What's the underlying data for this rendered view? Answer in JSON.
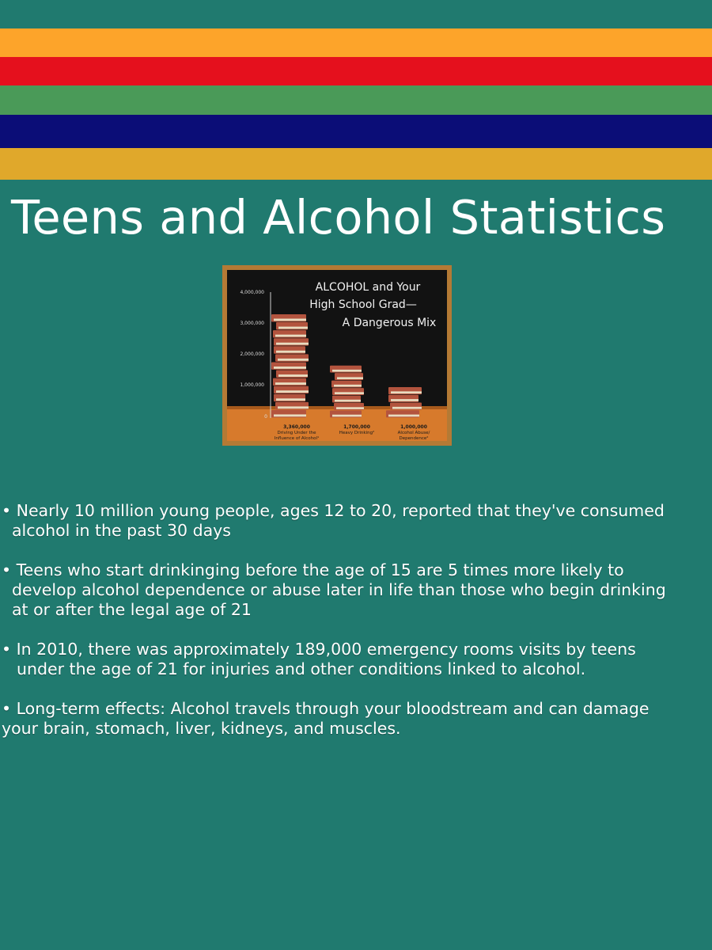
{
  "header": {
    "stripe_colors": [
      "#fda42a",
      "#e5101d",
      "#4a9a58",
      "#0b0d77",
      "#e0a82b"
    ],
    "title": "Teens and Alcohol Statistics"
  },
  "poster": {
    "heading": [
      "ALCOHOL and Your",
      "High School Grad—",
      "A Dangerous Mix"
    ],
    "y_ticks": [
      "4,000,000",
      "3,000,000",
      "2,000,000",
      "1,000,000",
      "0"
    ],
    "bars": [
      {
        "value": "3,360,000",
        "label_lines": [
          "Driving Under the",
          "Influence of Alcohol¹"
        ]
      },
      {
        "value": "1,700,000",
        "label_lines": [
          "Heavy Drinking²"
        ]
      },
      {
        "value": "1,000,000",
        "label_lines": [
          "Alcohol Abuse/",
          "Dependence²"
        ]
      }
    ],
    "colors": {
      "board": "#121212",
      "frame": "#b47a35",
      "table": "#d77a2c",
      "book": "#b3543e",
      "pages": "#e8dcc0"
    }
  },
  "facts": [
    {
      "lines": [
        "• Nearly 10 million young people, ages 12 to 20, reported that they've consumed",
        "alcohol in the past 30 days"
      ]
    },
    {
      "lines": [
        "• Teens who start drinkinging before the age of 15 are 5 times more likely to",
        "develop alcohol dependence or abuse later in life than those who begin drinking",
        "at or after the legal age of 21"
      ]
    },
    {
      "lines": [
        "• In 2010, there was approximately 189,000 emergency rooms visits by teens",
        "under the age of 21 for injuries and other conditions linked to alcohol."
      ]
    },
    {
      "lines": [
        "• Long-term effects: Alcohol travels through your bloodstream and can damage",
        "your brain, stomach, liver, kidneys, and muscles."
      ]
    }
  ]
}
